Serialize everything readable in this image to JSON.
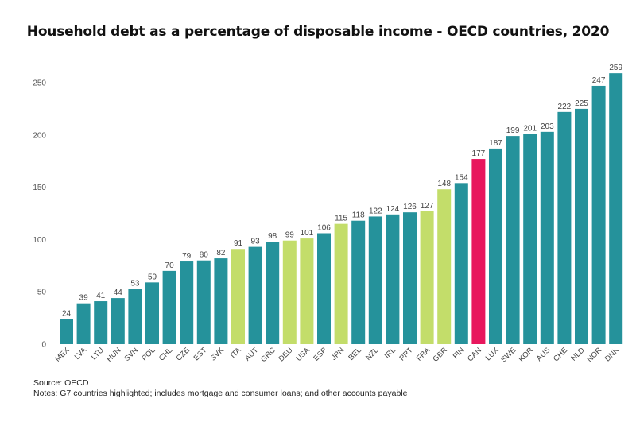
{
  "chart_data": {
    "type": "bar",
    "title": "Household debt as a percentage of disposable income - OECD countries, 2020",
    "categories": [
      "MEX",
      "LVA",
      "LTU",
      "HUN",
      "SVN",
      "POL",
      "CHL",
      "CZE",
      "EST",
      "SVK",
      "ITA",
      "AUT",
      "GRC",
      "DEU",
      "USA",
      "ESP",
      "JPN",
      "BEL",
      "NZL",
      "IRL",
      "PRT",
      "FRA",
      "GBR",
      "FIN",
      "CAN",
      "LUX",
      "SWE",
      "KOR",
      "AUS",
      "CHE",
      "NLD",
      "NOR",
      "DNK"
    ],
    "values": [
      24,
      39,
      41,
      44,
      53,
      59,
      70,
      79,
      80,
      82,
      91,
      93,
      98,
      99,
      101,
      106,
      115,
      118,
      122,
      124,
      126,
      127,
      148,
      154,
      177,
      187,
      199,
      201,
      203,
      222,
      225,
      247,
      259
    ],
    "value_labels": [
      "24",
      "39",
      "41",
      "44",
      "53",
      "59",
      "70",
      "79",
      "80",
      "82",
      "91",
      "93",
      "98",
      "99",
      "101",
      "106",
      "115",
      "118",
      "122",
      "124",
      "126",
      "127",
      "148",
      "154",
      "177",
      "187",
      "199",
      "201",
      "203",
      "222",
      "225",
      "247",
      "259"
    ],
    "highlight": [
      "normal",
      "normal",
      "normal",
      "normal",
      "normal",
      "normal",
      "normal",
      "normal",
      "normal",
      "normal",
      "g7",
      "normal",
      "normal",
      "g7",
      "g7",
      "normal",
      "g7",
      "normal",
      "normal",
      "normal",
      "normal",
      "g7",
      "g7",
      "normal",
      "canada",
      "normal",
      "normal",
      "normal",
      "normal",
      "normal",
      "normal",
      "normal",
      "normal"
    ],
    "colors": {
      "normal": "#25929b",
      "g7": "#c3dd6a",
      "canada": "#e8175d"
    },
    "yticks": [
      0,
      50,
      100,
      150,
      200,
      250
    ],
    "ytick_labels": [
      "0",
      "50",
      "100",
      "150",
      "200",
      "250"
    ],
    "ylim": [
      0,
      260
    ],
    "grid": false,
    "xlabel": "",
    "ylabel": ""
  },
  "footer": {
    "source": "Source:  OECD",
    "notes": "Notes: G7 countries highlighted; includes mortgage and consumer loans; and other accounts payable"
  }
}
